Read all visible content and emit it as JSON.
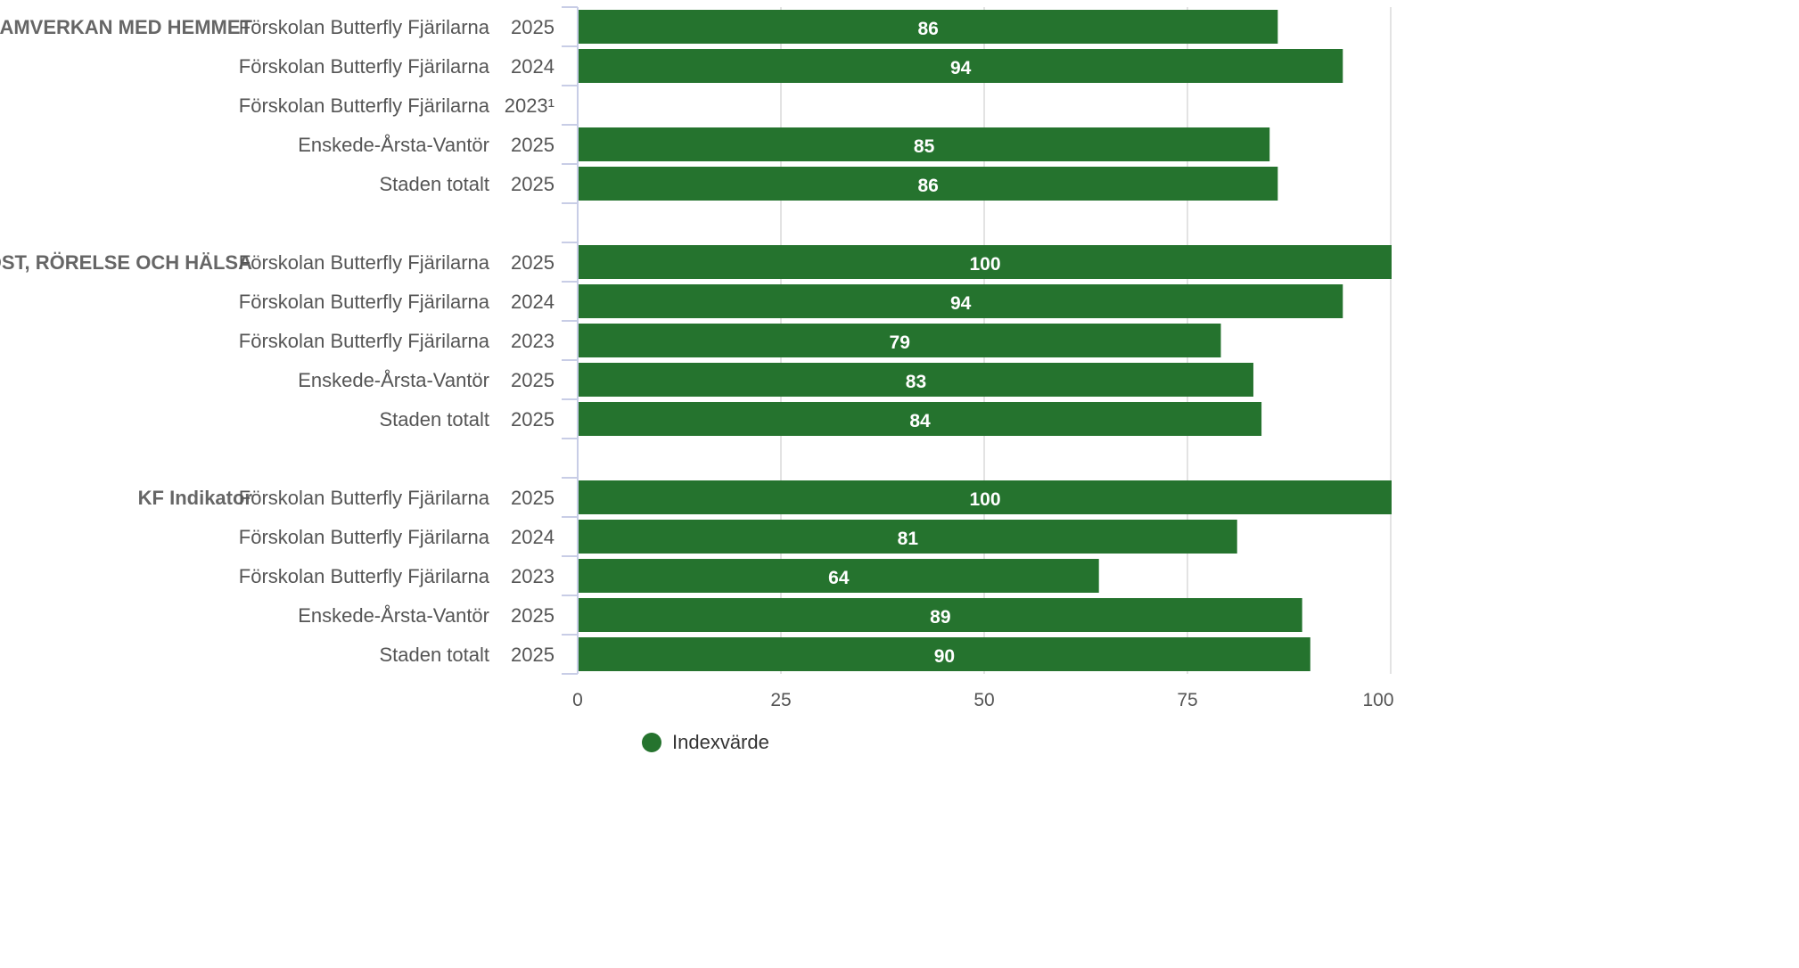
{
  "chart_data": {
    "type": "bar",
    "orientation": "horizontal",
    "xlim": [
      0,
      100
    ],
    "x_ticks": [
      "0",
      "25",
      "50",
      "75",
      "100"
    ],
    "grid": true,
    "bar_color": "#25732e",
    "legend": {
      "position": "bottom",
      "entries": [
        "Indexvärde"
      ]
    },
    "groups": [
      {
        "category": "SAMVERKAN MED HEMMET",
        "rows": [
          {
            "label": "Förskolan Butterfly Fjärilarna",
            "year": "2025",
            "value": 86
          },
          {
            "label": "Förskolan Butterfly Fjärilarna",
            "year": "2024",
            "value": 94
          },
          {
            "label": "Förskolan Butterfly Fjärilarna",
            "year": "2023¹",
            "value": null
          },
          {
            "label": "Enskede-Årsta-Vantör",
            "year": "2025",
            "value": 85
          },
          {
            "label": "Staden totalt",
            "year": "2025",
            "value": 86
          }
        ]
      },
      {
        "category": "KOST, RÖRELSE OCH HÄLSA",
        "rows": [
          {
            "label": "Förskolan Butterfly Fjärilarna",
            "year": "2025",
            "value": 100
          },
          {
            "label": "Förskolan Butterfly Fjärilarna",
            "year": "2024",
            "value": 94
          },
          {
            "label": "Förskolan Butterfly Fjärilarna",
            "year": "2023",
            "value": 79
          },
          {
            "label": "Enskede-Årsta-Vantör",
            "year": "2025",
            "value": 83
          },
          {
            "label": "Staden totalt",
            "year": "2025",
            "value": 84
          }
        ]
      },
      {
        "category": "KF Indikator",
        "rows": [
          {
            "label": "Förskolan Butterfly Fjärilarna",
            "year": "2025",
            "value": 100
          },
          {
            "label": "Förskolan Butterfly Fjärilarna",
            "year": "2024",
            "value": 81
          },
          {
            "label": "Förskolan Butterfly Fjärilarna",
            "year": "2023",
            "value": 64
          },
          {
            "label": "Enskede-Årsta-Vantör",
            "year": "2025",
            "value": 89
          },
          {
            "label": "Staden totalt",
            "year": "2025",
            "value": 90
          }
        ]
      }
    ]
  }
}
